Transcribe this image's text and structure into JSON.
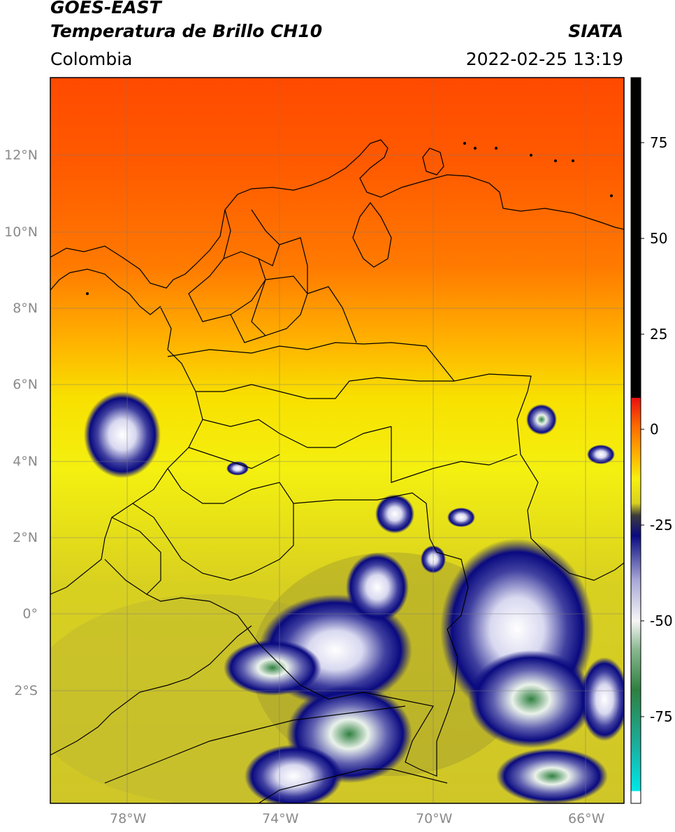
{
  "header": {
    "satellite": "GOES-EAST",
    "product": "Temperatura de Brillo CH10",
    "region": "Colombia",
    "source": "SIATA",
    "datetime": "2022-02-25 13:19"
  },
  "map": {
    "lat_labels": [
      "12°N",
      "10°N",
      "8°N",
      "6°N",
      "4°N",
      "2°N",
      "0°",
      "2°S"
    ],
    "lon_labels": [
      "78°W",
      "74°W",
      "70°W",
      "66°W"
    ]
  },
  "colorbar": {
    "ticks": [
      "75",
      "50",
      "25",
      "0",
      "-25",
      "-50",
      "-75"
    ],
    "colors": {
      "black": "#000000",
      "red": "#e01010",
      "orange": "#ff9900",
      "yellow": "#f4ef10",
      "olive": "#c8c020",
      "darkgray": "#3c3c3c",
      "navy": "#0a0a80",
      "white": "#f6f6f6",
      "green": "#2f8040",
      "cyan": "#00e0e0"
    }
  }
}
